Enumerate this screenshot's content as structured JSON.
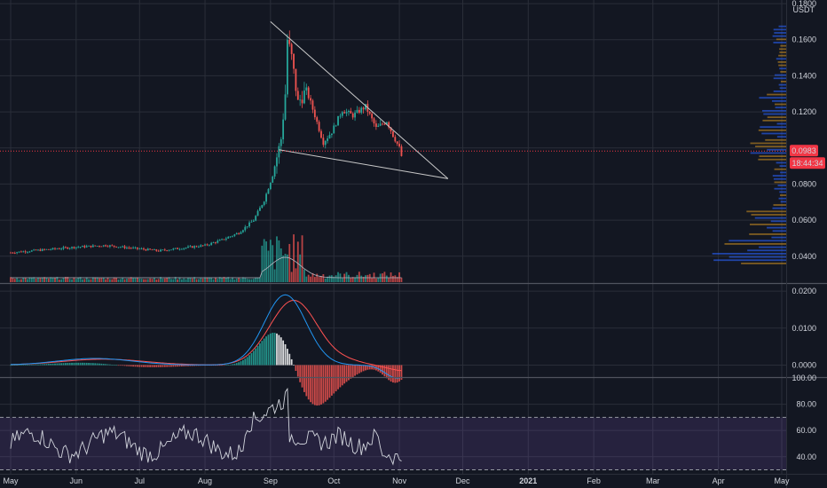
{
  "chart_data": [
    {
      "type": "candlestick",
      "pane": "price",
      "quote_currency": "USDT",
      "y_ticks": [
        "0.1600",
        "0.1400",
        "0.1200",
        "0.0800",
        "0.0600",
        "0.0400"
      ],
      "y_tick_values": [
        0.16,
        0.14,
        0.12,
        0.08,
        0.06,
        0.04
      ],
      "top_cut_label": "0.1800",
      "ylim": [
        0.033,
        0.182
      ],
      "last_price": "0.0983",
      "countdown": "18:44:34",
      "trendline_upper": [
        [
          "2020-09-01",
          0.17
        ],
        [
          "2020-11-24",
          0.083
        ]
      ],
      "trendline_lower": [
        [
          "2020-09-05",
          0.099
        ],
        [
          "2020-11-24",
          0.083
        ]
      ],
      "volume_ma_peak": "2020-09-07",
      "has_volume_profile": true
    },
    {
      "type": "line",
      "pane": "macd",
      "y_ticks": [
        "0.0200",
        "0.0100",
        "0.0000"
      ],
      "y_tick_values": [
        0.02,
        0.01,
        0.0
      ],
      "ylim": [
        -0.0006,
        0.0205
      ],
      "series_colors": [
        "#2196f3",
        "#ff5252"
      ],
      "histogram": true
    },
    {
      "type": "line",
      "pane": "rsi",
      "y_ticks": [
        "80.00",
        "60.00",
        "40.00"
      ],
      "y_tick_values": [
        80,
        60,
        40
      ],
      "top_cut_label": "100.00",
      "ylim": [
        27,
        100
      ],
      "bands": [
        30,
        70
      ],
      "last_value": 40
    }
  ],
  "x_axis": {
    "labels": [
      "May",
      "Jun",
      "Jul",
      "Aug",
      "Sep",
      "Oct",
      "Nov",
      "Dec",
      "2021",
      "Feb",
      "Mar",
      "Apr",
      "May"
    ],
    "dates": [
      "2020-05-01",
      "2020-06-01",
      "2020-07-01",
      "2020-08-01",
      "2020-09-01",
      "2020-10-01",
      "2020-11-01",
      "2020-12-01",
      "2021-01-01",
      "2021-02-01",
      "2021-03-01",
      "2021-04-01",
      "2021-05-01"
    ]
  },
  "colors": {
    "background": "#131722",
    "grid": "#2a2e39",
    "up": "#26a69a",
    "down": "#ef5350",
    "trendline": "#c8c8c8",
    "macd_line": "#2196f3",
    "signal_line": "#ff5252",
    "rsi_line": "#d1d4dc",
    "rsi_band": "#7e57c2",
    "label_red": "#f23645",
    "text": "#d1d4dc"
  }
}
